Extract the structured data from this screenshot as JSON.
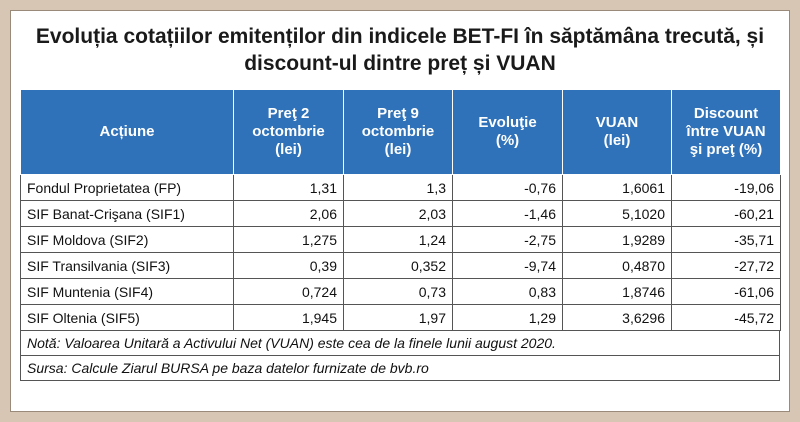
{
  "title": {
    "line1": "Evoluția cotațiilor emitenților din indicele BET-FI în săptămâna trecută, și",
    "line2": "discount-ul dintre preț și VUAN"
  },
  "table": {
    "headers": [
      [
        "Acțiune"
      ],
      [
        "Preţ 2",
        "octombrie",
        "(lei)"
      ],
      [
        "Preţ 9",
        "octombrie",
        "(lei)"
      ],
      [
        "Evoluţie",
        "(%)"
      ],
      [
        "VUAN",
        "(lei)"
      ],
      [
        "Discount",
        "între VUAN",
        "şi preţ (%)"
      ]
    ],
    "rows": [
      [
        "Fondul Proprietatea (FP)",
        "1,31",
        "1,3",
        "-0,76",
        "1,6061",
        "-19,06"
      ],
      [
        "SIF Banat-Crişana (SIF1)",
        "2,06",
        "2,03",
        "-1,46",
        "5,1020",
        "-60,21"
      ],
      [
        "SIF Moldova (SIF2)",
        "1,275",
        "1,24",
        "-2,75",
        "1,9289",
        "-35,71"
      ],
      [
        "SIF Transilvania (SIF3)",
        "0,39",
        "0,352",
        "-9,74",
        "0,4870",
        "-27,72"
      ],
      [
        "SIF Muntenia (SIF4)",
        "0,724",
        "0,73",
        "0,83",
        "1,8746",
        "-61,06"
      ],
      [
        "SIF Oltenia (SIF5)",
        "1,945",
        "1,97",
        "1,29",
        "3,6296",
        "-45,72"
      ]
    ]
  },
  "note": "Notă: Valoarea Unitară a Activului Net (VUAN) este cea de la finele lunii august 2020.",
  "source": "Sursa: Calcule Ziarul BURSA pe baza datelor furnizate de bvb.ro"
}
